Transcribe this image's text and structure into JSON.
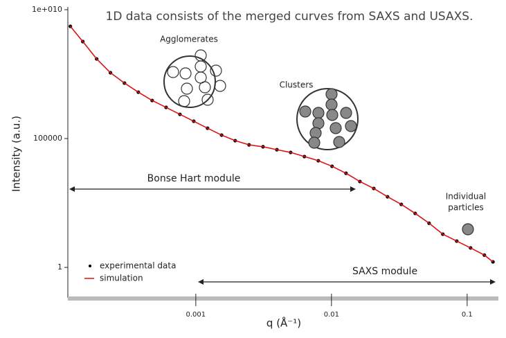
{
  "chart_data": {
    "type": "scatter",
    "title": "1D data consists of the merged curves from SAXS and USAXS.",
    "x_label": "q (Å⁻¹)",
    "y_label": "Intensity (a.u.)",
    "annotations": [
      "Agglomerates",
      "Clusters",
      "Individual",
      "particles",
      "Bonse Hart module",
      "SAXS module"
    ],
    "log_x": true,
    "log_y": true,
    "xlim": [
      0.000114,
      0.166
    ],
    "ylim": [
      0.066,
      10000000000
    ],
    "xticks": [
      0.001,
      0.01,
      0.1
    ],
    "yticks": [
      {
        "value": 10000000000,
        "label": "1e+010"
      },
      100000,
      1
    ],
    "x": [
      0.000119,
      0.000147,
      0.000186,
      0.000235,
      0.000298,
      0.000377,
      0.000477,
      0.000604,
      0.000764,
      0.000966,
      0.00122,
      0.00155,
      0.00195,
      0.00247,
      0.00313,
      0.00396,
      0.005,
      0.00632,
      0.008,
      0.0101,
      0.0128,
      0.0162,
      0.0205,
      0.0259,
      0.0327,
      0.0414,
      0.0524,
      0.0662,
      0.0838,
      0.106,
      0.134,
      0.155
    ],
    "series": [
      {
        "name": "experimental data",
        "color": "#000000",
        "style": "points",
        "values": [
          2260000000,
          580000000,
          123000000,
          35800000,
          14200000,
          6300000,
          3000000,
          1620000,
          870000,
          470000,
          253000,
          136000,
          83000,
          57000,
          48000,
          37000,
          29000,
          20000,
          13800,
          8400,
          4500,
          2150,
          1160,
          552,
          279,
          125,
          52,
          19.5,
          10.5,
          5.7,
          3.0,
          1.64
        ]
      },
      {
        "name": "simulation",
        "color": "#dd1111",
        "style": "line",
        "values": [
          2260000000,
          580000000,
          123000000,
          35800000,
          14200000,
          6300000,
          3000000,
          1620000,
          870000,
          470000,
          253000,
          136000,
          83000,
          57000,
          48000,
          37000,
          29000,
          20000,
          13800,
          8400,
          4500,
          2150,
          1160,
          552,
          279,
          125,
          52,
          19.5,
          10.5,
          5.7,
          3.0,
          1.64
        ]
      }
    ]
  }
}
